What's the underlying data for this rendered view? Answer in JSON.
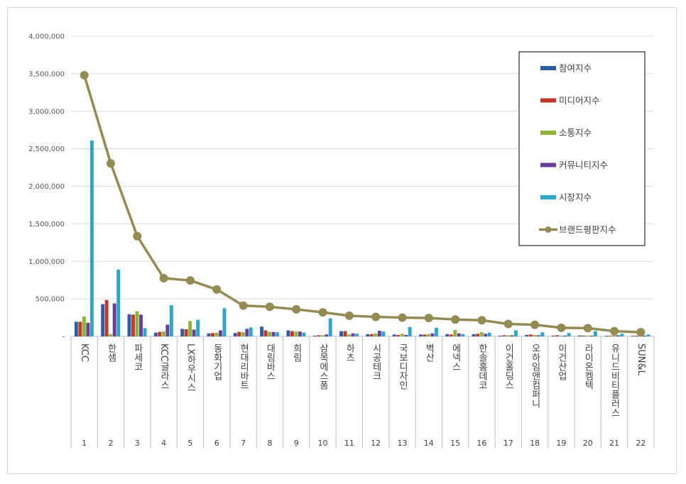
{
  "chart_data": {
    "type": "bar",
    "categories": [
      "KCC",
      "한샘",
      "파세코",
      "KCC글라스",
      "LX하우시스",
      "동화기업",
      "현대리바트",
      "대림바스",
      "희림",
      "삼목에스폼",
      "하츠",
      "시공테크",
      "국보디자인",
      "벽산",
      "에넥스",
      "한솔홈데코",
      "이건홀딩스",
      "오하임앤컴퍼니",
      "이건산업",
      "라이온켐텍",
      "유니드비티플러스",
      "SUN&L"
    ],
    "ranks": [
      "1",
      "2",
      "3",
      "4",
      "5",
      "6",
      "7",
      "8",
      "9",
      "10",
      "11",
      "12",
      "13",
      "14",
      "15",
      "16",
      "17",
      "18",
      "19",
      "20",
      "21",
      "22"
    ],
    "ylim": [
      0,
      4000000
    ],
    "yticks": [
      {
        "value": 0,
        "label": "-"
      },
      {
        "value": 500000,
        "label": "500,000"
      },
      {
        "value": 1000000,
        "label": "1,000,000"
      },
      {
        "value": 1500000,
        "label": "1,500,000"
      },
      {
        "value": 2000000,
        "label": "2,000,000"
      },
      {
        "value": 2500000,
        "label": "2,500,000"
      },
      {
        "value": 3000000,
        "label": "3,000,000"
      },
      {
        "value": 3500000,
        "label": "3,500,000"
      },
      {
        "value": 4000000,
        "label": "4,000,000"
      }
    ],
    "grid": true,
    "legend_position": "top-right",
    "series": [
      {
        "name": "참여지수",
        "kind": "bar",
        "color": "#2E5EA8",
        "values": [
          195000,
          430000,
          295000,
          50000,
          100000,
          40000,
          45000,
          130000,
          80000,
          10000,
          70000,
          30000,
          25000,
          25000,
          30000,
          30000,
          10000,
          20000,
          10000,
          12000,
          8000,
          8000
        ]
      },
      {
        "name": "미디어지수",
        "kind": "bar",
        "color": "#C0392B",
        "values": [
          195000,
          485000,
          290000,
          60000,
          95000,
          45000,
          60000,
          80000,
          70000,
          15000,
          70000,
          30000,
          20000,
          25000,
          25000,
          35000,
          15000,
          25000,
          15000,
          10000,
          8000,
          10000
        ]
      },
      {
        "name": "소통지수",
        "kind": "bar",
        "color": "#8DB33B",
        "values": [
          265000,
          30000,
          335000,
          65000,
          205000,
          50000,
          55000,
          60000,
          65000,
          15000,
          25000,
          40000,
          35000,
          30000,
          85000,
          55000,
          15000,
          20000,
          10000,
          10000,
          15000,
          8000
        ]
      },
      {
        "name": "커뮤니티지수",
        "kind": "bar",
        "color": "#6A3E98",
        "values": [
          180000,
          440000,
          290000,
          155000,
          90000,
          80000,
          100000,
          60000,
          65000,
          25000,
          40000,
          75000,
          20000,
          40000,
          40000,
          35000,
          15000,
          15000,
          10000,
          10000,
          15000,
          10000
        ]
      },
      {
        "name": "시장지수",
        "kind": "bar",
        "color": "#2FA5C8",
        "values": [
          2610000,
          890000,
          110000,
          415000,
          220000,
          375000,
          120000,
          55000,
          50000,
          240000,
          35000,
          65000,
          125000,
          115000,
          30000,
          50000,
          80000,
          55000,
          45000,
          70000,
          35000,
          25000
        ]
      },
      {
        "name": "브랜드평판지수",
        "kind": "line",
        "color": "#948A54",
        "values": [
          3480000,
          2305000,
          1335000,
          775000,
          745000,
          625000,
          410000,
          395000,
          360000,
          320000,
          275000,
          260000,
          250000,
          245000,
          225000,
          215000,
          165000,
          155000,
          115000,
          110000,
          70000,
          55000
        ]
      }
    ]
  }
}
